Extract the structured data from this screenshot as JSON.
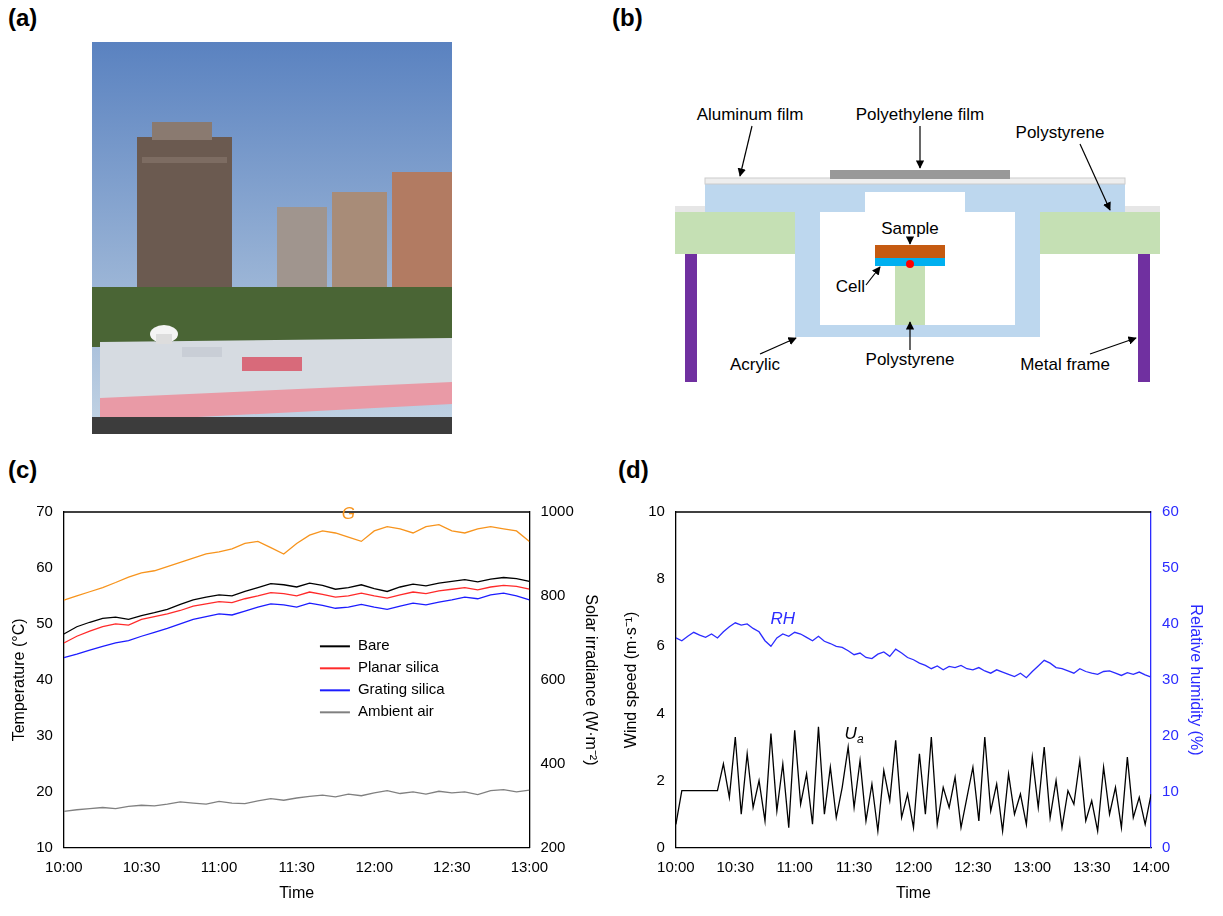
{
  "panel_labels": [
    "(a)",
    "(b)",
    "(c)",
    "(d)"
  ],
  "diagram": {
    "labels": [
      "Aluminum film",
      "Polyethylene film",
      "Polystyrene",
      "Sample",
      "Cell",
      "Polystyrene",
      "Acrylic",
      "Metal frame"
    ]
  },
  "chart_data": [
    {
      "type": "line",
      "x": [
        600,
        605,
        610,
        615,
        620,
        625,
        630,
        635,
        640,
        645,
        650,
        655,
        660,
        665,
        670,
        675,
        680,
        685,
        690,
        695,
        700,
        705,
        710,
        715,
        720,
        725,
        730,
        735,
        740,
        745,
        750,
        755,
        760,
        765,
        770,
        775,
        780
      ],
      "xlim": [
        600,
        780
      ],
      "xticks": [
        {
          "value": 600,
          "label": "10:00"
        },
        {
          "value": 630,
          "label": "10:30"
        },
        {
          "value": 660,
          "label": "11:00"
        },
        {
          "value": 690,
          "label": "11:30"
        },
        {
          "value": 720,
          "label": "12:00"
        },
        {
          "value": 750,
          "label": "12:30"
        },
        {
          "value": 780,
          "label": "13:00"
        }
      ],
      "x_label": "Time",
      "y_label": "Temperature (°C)",
      "ylim": [
        10,
        70
      ],
      "yticks": [
        10,
        20,
        30,
        40,
        50,
        60,
        70
      ],
      "y2_label": "Solar irradiance (W·m⁻²)",
      "y2lim": [
        200,
        1000
      ],
      "y2ticks": [
        200,
        400,
        600,
        800,
        1000
      ],
      "grid": false,
      "legend": "center",
      "series": [
        {
          "name": "Bare",
          "color": "#000000",
          "values": [
            48.2,
            49.5,
            50.3,
            51.0,
            51.2,
            50.8,
            51.5,
            52.0,
            52.6,
            53.5,
            54.3,
            54.8,
            55.2,
            55.0,
            55.8,
            56.5,
            57.2,
            57.0,
            56.6,
            57.3,
            56.9,
            56.2,
            56.5,
            57.0,
            56.3,
            55.8,
            56.6,
            57.1,
            56.8,
            57.3,
            57.6,
            57.9,
            57.5,
            58.0,
            58.3,
            58.1,
            57.6
          ]
        },
        {
          "name": "Planar silica",
          "color": "#ff2a2a",
          "values": [
            46.6,
            47.8,
            48.7,
            49.5,
            50.0,
            49.8,
            50.8,
            51.3,
            51.8,
            52.4,
            53.2,
            53.6,
            54.0,
            53.8,
            54.5,
            55.0,
            55.6,
            55.4,
            55.0,
            55.7,
            55.3,
            54.8,
            55.0,
            55.5,
            55.0,
            54.6,
            55.2,
            55.7,
            55.4,
            55.9,
            56.2,
            56.5,
            56.1,
            56.6,
            56.9,
            56.7,
            56.2
          ]
        },
        {
          "name": "Grating silica",
          "color": "#1c1cff",
          "values": [
            44.0,
            44.6,
            45.3,
            46.0,
            46.6,
            47.0,
            47.8,
            48.5,
            49.2,
            50.0,
            50.8,
            51.3,
            51.8,
            51.6,
            52.3,
            53.0,
            53.6,
            53.4,
            53.0,
            53.7,
            53.3,
            52.8,
            53.0,
            53.5,
            53.0,
            52.6,
            53.2,
            53.7,
            53.4,
            53.9,
            54.3,
            54.8,
            54.5,
            55.2,
            55.5,
            55.0,
            54.3
          ]
        },
        {
          "name": "Ambient air",
          "color": "#808080",
          "values": [
            16.5,
            16.8,
            17.0,
            17.2,
            17.0,
            17.4,
            17.6,
            17.5,
            17.8,
            18.2,
            18.0,
            17.8,
            18.3,
            18.0,
            17.9,
            18.4,
            18.8,
            18.5,
            18.9,
            19.2,
            19.4,
            19.1,
            19.6,
            19.3,
            19.8,
            20.2,
            19.7,
            20.0,
            19.6,
            20.1,
            19.8,
            20.0,
            19.5,
            20.2,
            20.4,
            20.0,
            20.3
          ]
        },
        {
          "name": "G",
          "color": "#f7941d",
          "axis": "y2",
          "values": [
            790,
            800,
            810,
            820,
            832,
            845,
            855,
            860,
            870,
            880,
            890,
            900,
            905,
            912,
            925,
            930,
            915,
            900,
            925,
            945,
            955,
            950,
            940,
            930,
            955,
            965,
            960,
            950,
            965,
            970,
            955,
            950,
            960,
            965,
            960,
            955,
            930
          ]
        }
      ]
    },
    {
      "type": "line",
      "x": [
        600,
        603,
        606,
        609,
        612,
        615,
        618,
        621,
        624,
        627,
        630,
        633,
        636,
        639,
        642,
        645,
        648,
        651,
        654,
        657,
        660,
        663,
        666,
        669,
        672,
        675,
        678,
        681,
        684,
        687,
        690,
        693,
        696,
        699,
        702,
        705,
        708,
        711,
        714,
        717,
        720,
        723,
        726,
        729,
        732,
        735,
        738,
        741,
        744,
        747,
        750,
        753,
        756,
        759,
        762,
        765,
        768,
        771,
        774,
        777,
        780,
        783,
        786,
        789,
        792,
        795,
        798,
        801,
        804,
        807,
        810,
        813,
        816,
        819,
        822,
        825,
        828,
        831,
        834,
        837,
        840
      ],
      "xlim": [
        600,
        840
      ],
      "xticks": [
        {
          "value": 600,
          "label": "10:00"
        },
        {
          "value": 630,
          "label": "10:30"
        },
        {
          "value": 660,
          "label": "11:00"
        },
        {
          "value": 690,
          "label": "11:30"
        },
        {
          "value": 720,
          "label": "12:00"
        },
        {
          "value": 750,
          "label": "12:30"
        },
        {
          "value": 780,
          "label": "13:00"
        },
        {
          "value": 810,
          "label": "13:30"
        },
        {
          "value": 840,
          "label": "14:00"
        }
      ],
      "x_label": "Time",
      "y_label": "Wind speed (m·s⁻¹)",
      "ylim": [
        0,
        10
      ],
      "yticks": [
        0,
        2,
        4,
        6,
        8,
        10
      ],
      "y2_label": "Relative humidity (%)",
      "y2lim": [
        0,
        60
      ],
      "y2ticks": [
        0,
        10,
        20,
        30,
        40,
        50,
        60
      ],
      "grid": false,
      "series": [
        {
          "name": "RH",
          "color": "#2b2bff",
          "axis": "y2",
          "values": [
            37.5,
            37.0,
            37.8,
            38.5,
            38.0,
            37.6,
            38.2,
            37.5,
            38.6,
            39.5,
            40.2,
            39.8,
            40.0,
            39.2,
            38.6,
            37.0,
            36.0,
            37.5,
            38.2,
            37.8,
            38.5,
            38.2,
            37.6,
            37.0,
            37.8,
            36.9,
            36.5,
            36.0,
            35.8,
            35.2,
            34.5,
            34.8,
            34.0,
            33.8,
            34.6,
            35.0,
            34.2,
            35.5,
            34.8,
            34.0,
            33.6,
            33.0,
            32.6,
            32.0,
            32.5,
            31.8,
            32.4,
            32.2,
            32.6,
            32.0,
            31.8,
            32.2,
            31.6,
            31.2,
            31.8,
            31.4,
            31.0,
            30.6,
            31.2,
            30.4,
            31.5,
            32.5,
            33.5,
            33.0,
            32.2,
            32.0,
            31.6,
            31.2,
            32.0,
            31.5,
            31.2,
            31.0,
            31.5,
            31.6,
            31.2,
            30.8,
            31.3,
            31.0,
            31.4,
            30.9,
            30.5
          ]
        },
        {
          "name": "Ua",
          "color": "#000000",
          "values": [
            0.7,
            1.7,
            1.7,
            1.7,
            1.7,
            1.7,
            1.7,
            1.7,
            2.5,
            1.5,
            3.3,
            1.0,
            2.8,
            1.2,
            2.0,
            0.8,
            3.4,
            1.1,
            2.5,
            0.6,
            3.5,
            1.3,
            2.2,
            0.7,
            3.6,
            1.0,
            2.4,
            0.9,
            1.8,
            3.0,
            1.2,
            2.6,
            0.8,
            1.9,
            0.5,
            2.3,
            1.4,
            3.2,
            0.9,
            1.6,
            0.6,
            2.8,
            1.0,
            3.3,
            0.7,
            1.8,
            1.2,
            2.1,
            0.6,
            1.5,
            2.4,
            0.8,
            3.3,
            1.1,
            1.9,
            0.5,
            2.2,
            1.0,
            1.6,
            0.7,
            2.7,
            1.2,
            3.0,
            0.9,
            2.0,
            0.6,
            1.7,
            1.3,
            2.6,
            0.8,
            1.4,
            0.5,
            2.4,
            1.0,
            1.8,
            0.6,
            2.7,
            0.9,
            1.5,
            0.7,
            1.6
          ]
        }
      ]
    }
  ]
}
